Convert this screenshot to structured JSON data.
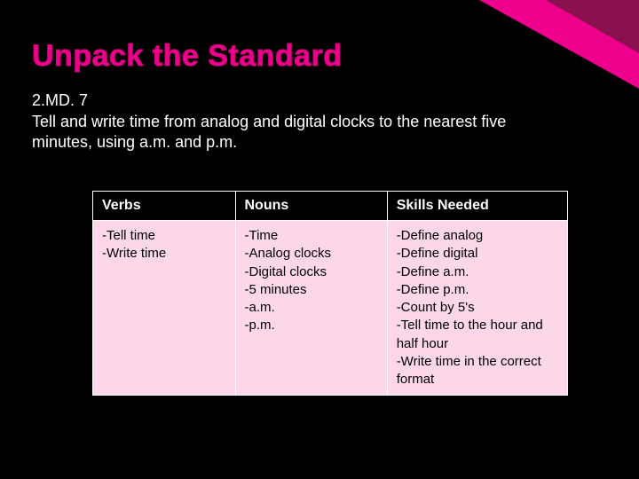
{
  "title": "Unpack the Standard",
  "standard": {
    "id": "2.MD. 7",
    "text": "Tell and write time from analog and digital clocks to the nearest five minutes, using a.m. and p.m."
  },
  "table": {
    "type": "table",
    "columns": [
      "Verbs",
      "Nouns",
      "Skills Needed"
    ],
    "column_widths_pct": [
      30,
      32,
      38
    ],
    "header_bg": "#000000",
    "header_fg": "#ffffff",
    "cell_bg": "#fcd7ea",
    "cell_fg": "#000000",
    "border_color": "#ffffff",
    "rows": [
      [
        "-Tell time\n-Write time",
        "-Time\n-Analog clocks\n-Digital clocks\n-5 minutes\n-a.m.\n-p.m.",
        "-Define analog\n-Define digital\n-Define a.m.\n-Define p.m.\n-Count by 5's\n-Tell time to the hour and half hour\n-Write time in the correct format"
      ]
    ]
  },
  "theme": {
    "background_color": "#000000",
    "accent_color": "#ec008c",
    "accent_dark": "#8a1050",
    "text_color": "#ffffff",
    "title_fontsize_pt": 26,
    "body_fontsize_pt": 14,
    "table_fontsize_pt": 12
  }
}
